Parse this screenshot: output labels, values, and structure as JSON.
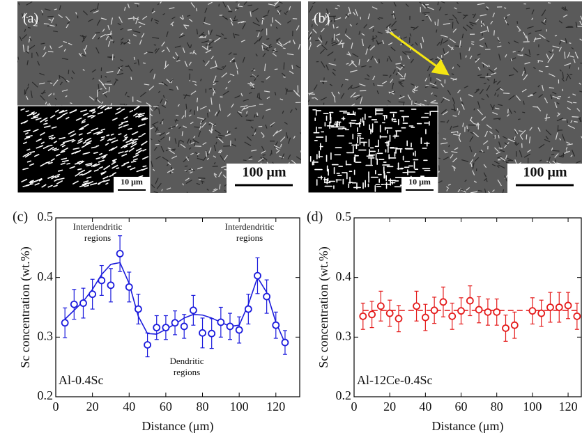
{
  "images": [
    {
      "label": "(a)",
      "scale_bar": "100 μm",
      "inset_scale_bar": "10 μm"
    },
    {
      "label": "(b)",
      "scale_bar": "100 μm",
      "inset_scale_bar": "10 μm"
    }
  ],
  "chart_data": [
    {
      "type": "scatter",
      "panel_label": "(c)",
      "xlabel": "Distance (μm)",
      "ylabel": "Sc concentration (wt.%)",
      "sample_label": "Al-0.4Sc",
      "annotations": [
        [
          "Interdendritic",
          "regions"
        ],
        [
          "Interdendritic",
          "regions"
        ],
        [
          "Dendritic",
          "regions"
        ]
      ],
      "xlim": [
        0,
        133
      ],
      "ylim": [
        0.2,
        0.5
      ],
      "xticks": [
        0,
        20,
        40,
        60,
        80,
        100,
        120
      ],
      "yticks": [
        0.2,
        0.3,
        0.4,
        0.5
      ],
      "series": [
        {
          "type": "scatter",
          "color": "#1a1adc",
          "x": [
            5,
            10,
            15,
            20,
            25,
            30,
            35,
            40,
            45,
            50,
            55,
            60,
            65,
            70,
            75,
            80,
            85,
            90,
            95,
            100,
            105,
            110,
            115,
            120,
            125
          ],
          "values": [
            0.324,
            0.355,
            0.357,
            0.372,
            0.395,
            0.387,
            0.44,
            0.384,
            0.347,
            0.287,
            0.316,
            0.316,
            0.324,
            0.318,
            0.345,
            0.307,
            0.306,
            0.325,
            0.318,
            0.312,
            0.347,
            0.403,
            0.368,
            0.32,
            0.291
          ],
          "errors": [
            0.025,
            0.025,
            0.025,
            0.025,
            0.025,
            0.028,
            0.03,
            0.025,
            0.025,
            0.02,
            0.02,
            0.02,
            0.02,
            0.02,
            0.025,
            0.025,
            0.025,
            0.025,
            0.022,
            0.022,
            0.025,
            0.03,
            0.028,
            0.022,
            0.02
          ]
        },
        {
          "type": "line",
          "color": "#1a1adc",
          "x": [
            5,
            10,
            15,
            20,
            25,
            30,
            35,
            40,
            45,
            50,
            55,
            60,
            65,
            70,
            75,
            80,
            85,
            90,
            95,
            100,
            105,
            110,
            115,
            120,
            125
          ],
          "values": [
            0.33,
            0.345,
            0.36,
            0.38,
            0.405,
            0.422,
            0.425,
            0.39,
            0.335,
            0.306,
            0.305,
            0.313,
            0.322,
            0.332,
            0.338,
            0.337,
            0.332,
            0.325,
            0.318,
            0.32,
            0.355,
            0.4,
            0.375,
            0.325,
            0.29
          ]
        }
      ]
    },
    {
      "type": "scatter",
      "panel_label": "(d)",
      "xlabel": "Distance (μm)",
      "ylabel": "Sc concentration (wt.%)",
      "sample_label": "Al-12Ce-0.4Sc",
      "xlim": [
        0,
        127.4
      ],
      "ylim": [
        0.2,
        0.5
      ],
      "xticks": [
        0,
        20,
        40,
        60,
        80,
        100,
        120
      ],
      "yticks": [
        0.2,
        0.3,
        0.4,
        0.5
      ],
      "series": [
        {
          "type": "scatter",
          "color": "#e41a1a",
          "x": [
            5,
            10,
            15,
            20,
            25,
            35,
            40,
            45,
            50,
            55,
            60,
            65,
            70,
            75,
            80,
            85,
            90,
            100,
            105,
            110,
            115,
            120,
            125
          ],
          "values": [
            0.335,
            0.338,
            0.352,
            0.34,
            0.331,
            0.352,
            0.333,
            0.345,
            0.359,
            0.335,
            0.344,
            0.361,
            0.346,
            0.342,
            0.342,
            0.315,
            0.32,
            0.344,
            0.34,
            0.35,
            0.35,
            0.353,
            0.335
          ],
          "errors": [
            0.022,
            0.022,
            0.025,
            0.022,
            0.022,
            0.025,
            0.022,
            0.022,
            0.025,
            0.022,
            0.022,
            0.025,
            0.022,
            0.022,
            0.022,
            0.022,
            0.022,
            0.022,
            0.022,
            0.025,
            0.025,
            0.022,
            0.022
          ]
        },
        {
          "type": "line",
          "color": "#e41a1a",
          "dashed": true,
          "x": [
            5,
            125
          ],
          "values": [
            0.345,
            0.345
          ]
        }
      ]
    }
  ]
}
